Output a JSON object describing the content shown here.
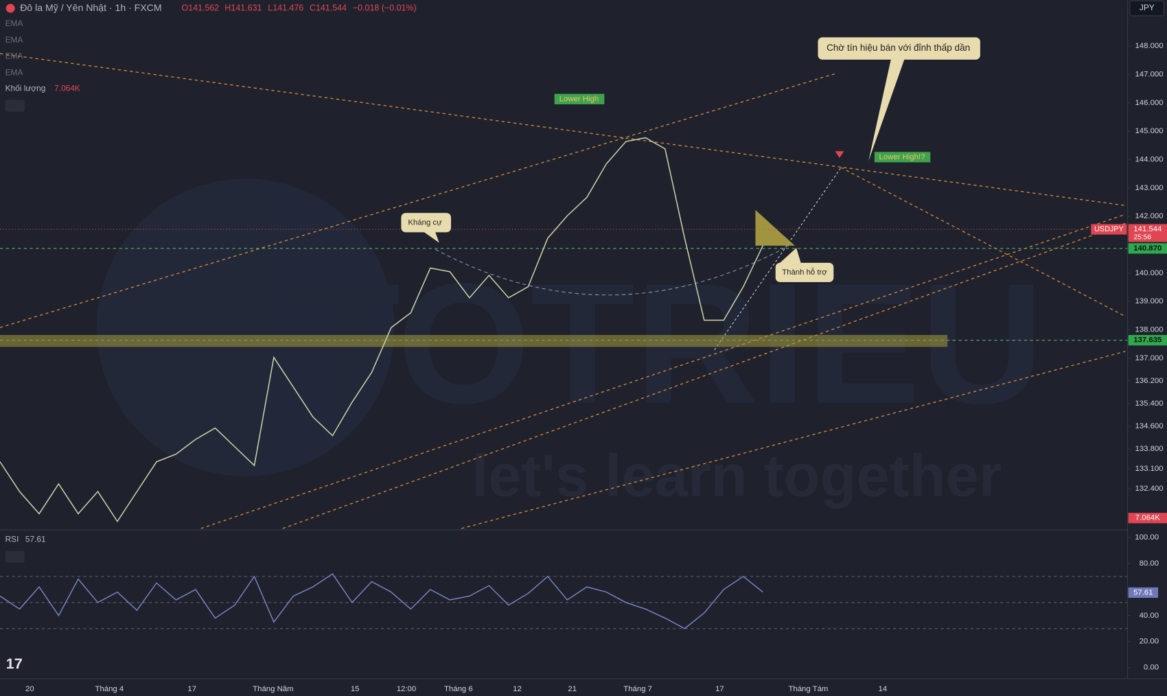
{
  "header": {
    "symbol": "Đô la Mỹ / Yên Nhật · 1h · FXCM",
    "open": "O141.562",
    "high": "H141.631",
    "low": "L141.476",
    "close": "C141.544",
    "change": "−0.018 (−0.01%)",
    "currency": "JPY"
  },
  "legend": {
    "indicators": [
      "EMA",
      "EMA",
      "EMA",
      "EMA"
    ],
    "volume_label": "Khối lượng",
    "volume_value": "7.064K"
  },
  "annotations": {
    "lower_high": "Lower High",
    "lower_high_q": "Lower High!?",
    "resistance": "Kháng cự",
    "support": "Thành hỗ trợ",
    "callout": "Chờ tín hiệu bán với đỉnh thấp dần"
  },
  "watermark": {
    "brand": "TOTRIEU",
    "slogan": "let's learn together"
  },
  "price_pane": {
    "ylim": [
      131,
      149.15
    ],
    "yticks": [
      {
        "value": 148,
        "label": "148.000"
      },
      {
        "value": 147,
        "label": "147.000"
      },
      {
        "value": 146,
        "label": "146.000"
      },
      {
        "value": 145,
        "label": "145.000"
      },
      {
        "value": 144,
        "label": "144.000"
      },
      {
        "value": 143,
        "label": "143.000"
      },
      {
        "value": 142,
        "label": "142.000"
      },
      {
        "value": 140,
        "label": "140.000"
      },
      {
        "value": 139,
        "label": "139.000"
      },
      {
        "value": 138,
        "label": "138.000"
      },
      {
        "value": 137,
        "label": "137.000"
      },
      {
        "value": 136.2,
        "label": "136.200"
      },
      {
        "value": 135.4,
        "label": "135.400"
      },
      {
        "value": 134.6,
        "label": "134.600"
      },
      {
        "value": 133.8,
        "label": "133.800"
      },
      {
        "value": 133.1,
        "label": "133.100"
      },
      {
        "value": 132.4,
        "label": "132.400"
      }
    ],
    "close": {
      "values": [
        133.35,
        132.3,
        131.52,
        132.57,
        131.52,
        132.3,
        131.25,
        132.3,
        133.35,
        133.62,
        134.14,
        134.54,
        133.88,
        133.22,
        137.03,
        135.98,
        134.93,
        134.27,
        135.45,
        136.5,
        138.08,
        138.6,
        140.18,
        140.05,
        139.13,
        139.92,
        139.13,
        139.52,
        141.23,
        142.02,
        142.67,
        143.85,
        144.64,
        144.77,
        144.38,
        141.23,
        138.34,
        138.34,
        139.52,
        140.97
      ]
    },
    "last_price": {
      "symbol": "USDJPY",
      "value": 141.544,
      "countdown": "25:56"
    },
    "levels": [
      {
        "value": 140.87,
        "label": "140.870"
      },
      {
        "value": 137.635,
        "label": "137.635"
      }
    ]
  },
  "rsi_pane": {
    "label": "RSI",
    "value": 57.61,
    "ylim": [
      -7.4,
      104
    ],
    "yticks": [
      {
        "value": 100,
        "label": "100.00"
      },
      {
        "value": 80,
        "label": "80.00"
      },
      {
        "value": 40,
        "label": "40.00"
      },
      {
        "value": 20,
        "label": "20.00"
      },
      {
        "value": 0,
        "label": "0.00"
      }
    ],
    "bands": [
      70,
      50,
      30
    ],
    "values": [
      55,
      45,
      62,
      40,
      68,
      50,
      58,
      44,
      65,
      52,
      60,
      38,
      48,
      70,
      35,
      55,
      62,
      72,
      50,
      66,
      58,
      45,
      60,
      52,
      55,
      63,
      48,
      57,
      70,
      52,
      62,
      58,
      50,
      45,
      38,
      30,
      42,
      60,
      70,
      58
    ]
  },
  "x_axis": {
    "labels": [
      "20",
      "Tháng 4",
      "17",
      "Tháng Năm",
      "15",
      "12:00",
      "Tháng 6",
      "12",
      "21",
      "Tháng 7",
      "17",
      "Tháng Tám",
      "14"
    ]
  }
}
